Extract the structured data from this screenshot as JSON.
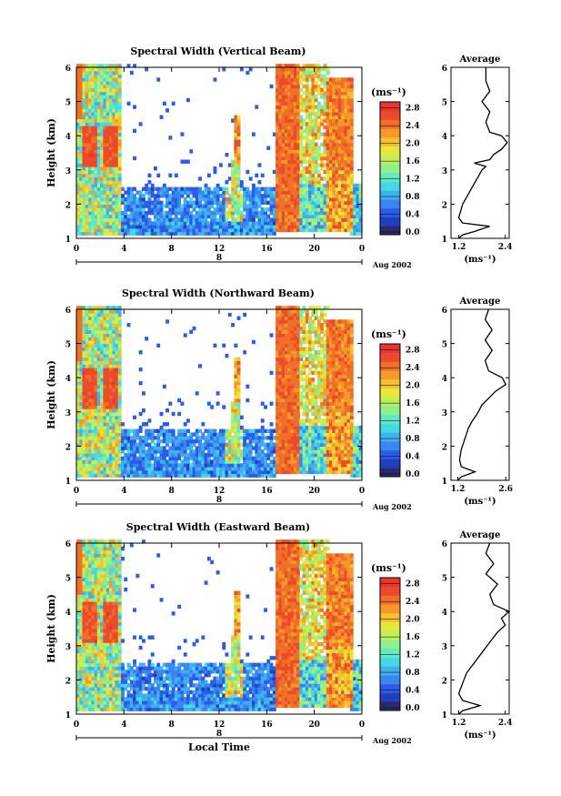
{
  "chart_data": [
    {
      "type": "heatmap",
      "title": "Spectral Width (Vertical Beam)",
      "ylabel": "Height (km)",
      "ylim": [
        1,
        6
      ],
      "yticks": [
        "1",
        "2",
        "3",
        "4",
        "5",
        "6"
      ],
      "xlim": [
        0,
        24
      ],
      "xticks": [
        "0",
        "4",
        "8",
        "12",
        "16",
        "20",
        "0"
      ],
      "date_day": "8",
      "date_label": "Aug 2002",
      "colorbar": {
        "unit": "(ms⁻¹)",
        "ticks": [
          "2.8",
          "2.4",
          "2.0",
          "1.6",
          "1.2",
          "0.8",
          "0.4",
          "0.0"
        ]
      },
      "average": {
        "title": "Average",
        "xlabel": "(ms⁻¹)",
        "xticks": [
          "1.2",
          "2.4"
        ],
        "xlim": [
          1.0,
          2.5
        ],
        "profile": [
          [
            1.2,
            1.0
          ],
          [
            1.3,
            1.1
          ],
          [
            1.6,
            1.2
          ],
          [
            2.0,
            1.35
          ],
          [
            1.3,
            1.45
          ],
          [
            1.2,
            1.6
          ],
          [
            1.25,
            1.8
          ],
          [
            1.3,
            2.0
          ],
          [
            1.4,
            2.2
          ],
          [
            1.5,
            2.4
          ],
          [
            1.6,
            2.6
          ],
          [
            1.7,
            2.8
          ],
          [
            1.8,
            3.0
          ],
          [
            1.9,
            3.1
          ],
          [
            1.6,
            3.2
          ],
          [
            2.0,
            3.3
          ],
          [
            2.1,
            3.45
          ],
          [
            2.3,
            3.6
          ],
          [
            2.45,
            3.8
          ],
          [
            2.3,
            4.0
          ],
          [
            2.0,
            4.1
          ],
          [
            1.9,
            4.4
          ],
          [
            2.0,
            4.7
          ],
          [
            1.8,
            5.0
          ],
          [
            2.0,
            5.3
          ],
          [
            1.9,
            5.6
          ],
          [
            1.9,
            6.0
          ]
        ]
      }
    },
    {
      "type": "heatmap",
      "title": "Spectral Width (Northward Beam)",
      "ylabel": "Height (km)",
      "ylim": [
        1,
        6
      ],
      "yticks": [
        "1",
        "2",
        "3",
        "4",
        "5",
        "6"
      ],
      "xlim": [
        0,
        24
      ],
      "xticks": [
        "0",
        "4",
        "8",
        "12",
        "16",
        "20",
        "0"
      ],
      "date_day": "8",
      "date_label": "Aug 2002",
      "colorbar": {
        "unit": "(ms⁻¹)",
        "ticks": [
          "2.8",
          "2.4",
          "2.0",
          "1.6",
          "1.2",
          "0.8",
          "0.4",
          "0.0"
        ]
      },
      "average": {
        "title": "Average",
        "xlabel": "(ms⁻¹)",
        "xticks": [
          "1.2",
          "2.6"
        ],
        "xlim": [
          1.0,
          2.7
        ],
        "profile": [
          [
            1.2,
            1.0
          ],
          [
            1.3,
            1.1
          ],
          [
            1.7,
            1.25
          ],
          [
            1.3,
            1.4
          ],
          [
            1.25,
            1.6
          ],
          [
            1.3,
            1.9
          ],
          [
            1.4,
            2.2
          ],
          [
            1.5,
            2.5
          ],
          [
            1.6,
            2.7
          ],
          [
            1.8,
            3.0
          ],
          [
            1.9,
            3.2
          ],
          [
            2.1,
            3.4
          ],
          [
            2.3,
            3.6
          ],
          [
            2.6,
            3.8
          ],
          [
            2.5,
            4.0
          ],
          [
            2.1,
            4.2
          ],
          [
            2.0,
            4.5
          ],
          [
            2.2,
            4.8
          ],
          [
            2.0,
            5.1
          ],
          [
            2.2,
            5.4
          ],
          [
            2.0,
            5.7
          ],
          [
            2.1,
            6.0
          ]
        ]
      }
    },
    {
      "type": "heatmap",
      "title": "Spectral Width (Eastward Beam)",
      "ylabel": "Height (km)",
      "ylim": [
        1,
        6
      ],
      "yticks": [
        "1",
        "2",
        "3",
        "4",
        "5",
        "6"
      ],
      "xlim": [
        0,
        24
      ],
      "xticks": [
        "0",
        "4",
        "8",
        "12",
        "16",
        "20",
        "0"
      ],
      "xlabel": "Local Time",
      "date_day": "8",
      "date_label": "Aug 2002",
      "colorbar": {
        "unit": "(ms⁻¹)",
        "ticks": [
          "2.8",
          "2.4",
          "2.0",
          "1.6",
          "1.2",
          "0.8",
          "0.4",
          "0.0"
        ]
      },
      "average": {
        "title": "Average",
        "xlabel": "(ms⁻¹)",
        "xticks": [
          "1.2",
          "2.4"
        ],
        "xlim": [
          1.0,
          2.5
        ],
        "profile": [
          [
            1.2,
            1.0
          ],
          [
            1.3,
            1.1
          ],
          [
            1.75,
            1.25
          ],
          [
            1.3,
            1.4
          ],
          [
            1.2,
            1.6
          ],
          [
            1.3,
            1.9
          ],
          [
            1.4,
            2.2
          ],
          [
            1.6,
            2.5
          ],
          [
            1.8,
            2.8
          ],
          [
            2.0,
            3.1
          ],
          [
            2.2,
            3.4
          ],
          [
            2.4,
            3.6
          ],
          [
            2.3,
            3.8
          ],
          [
            2.5,
            4.0
          ],
          [
            2.1,
            4.2
          ],
          [
            2.0,
            4.5
          ],
          [
            2.2,
            4.8
          ],
          [
            1.9,
            5.1
          ],
          [
            2.1,
            5.4
          ],
          [
            1.9,
            5.7
          ],
          [
            2.0,
            6.0
          ]
        ]
      }
    }
  ]
}
